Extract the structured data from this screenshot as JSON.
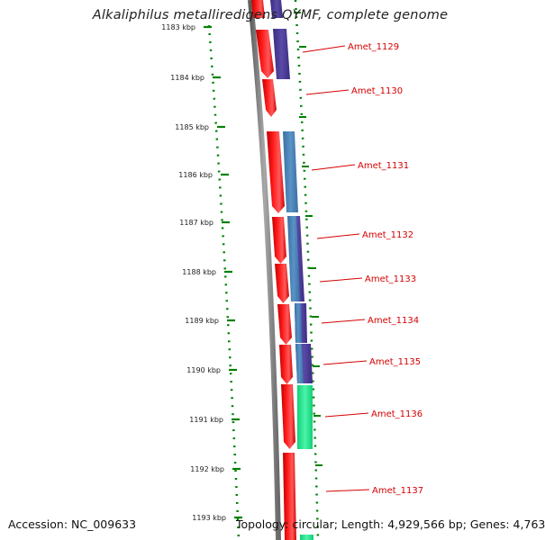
{
  "title": "Alkaliphilus metalliredigens QYMF, complete genome",
  "accession": "Accession: NC_009633",
  "topology": "Topology: circular; Length: 4,929,566 bp; Genes: 4,763",
  "ruler": {
    "ticks": [
      "1183 kbp",
      "1184 kbp",
      "1185 kbp",
      "1186 kbp",
      "1187 kbp",
      "1188 kbp",
      "1189 kbp",
      "1190 kbp",
      "1191 kbp",
      "1192 kbp",
      "1193 kbp"
    ]
  },
  "colors": {
    "cds": "#ff0000",
    "orf_purple": "#4b3b96",
    "orf_blue": "#4c83b8",
    "orf_green": "#22e892",
    "ruler": "#008000",
    "label": "#d40000",
    "backbone": "#8a8a8a"
  },
  "genes": [
    {
      "label": "Amet_1129"
    },
    {
      "label": "Amet_1130"
    },
    {
      "label": "Amet_1131"
    },
    {
      "label": "Amet_1132"
    },
    {
      "label": "Amet_1133"
    },
    {
      "label": "Amet_1134"
    },
    {
      "label": "Amet_1135"
    },
    {
      "label": "Amet_1136"
    },
    {
      "label": "Amet_1137"
    }
  ]
}
